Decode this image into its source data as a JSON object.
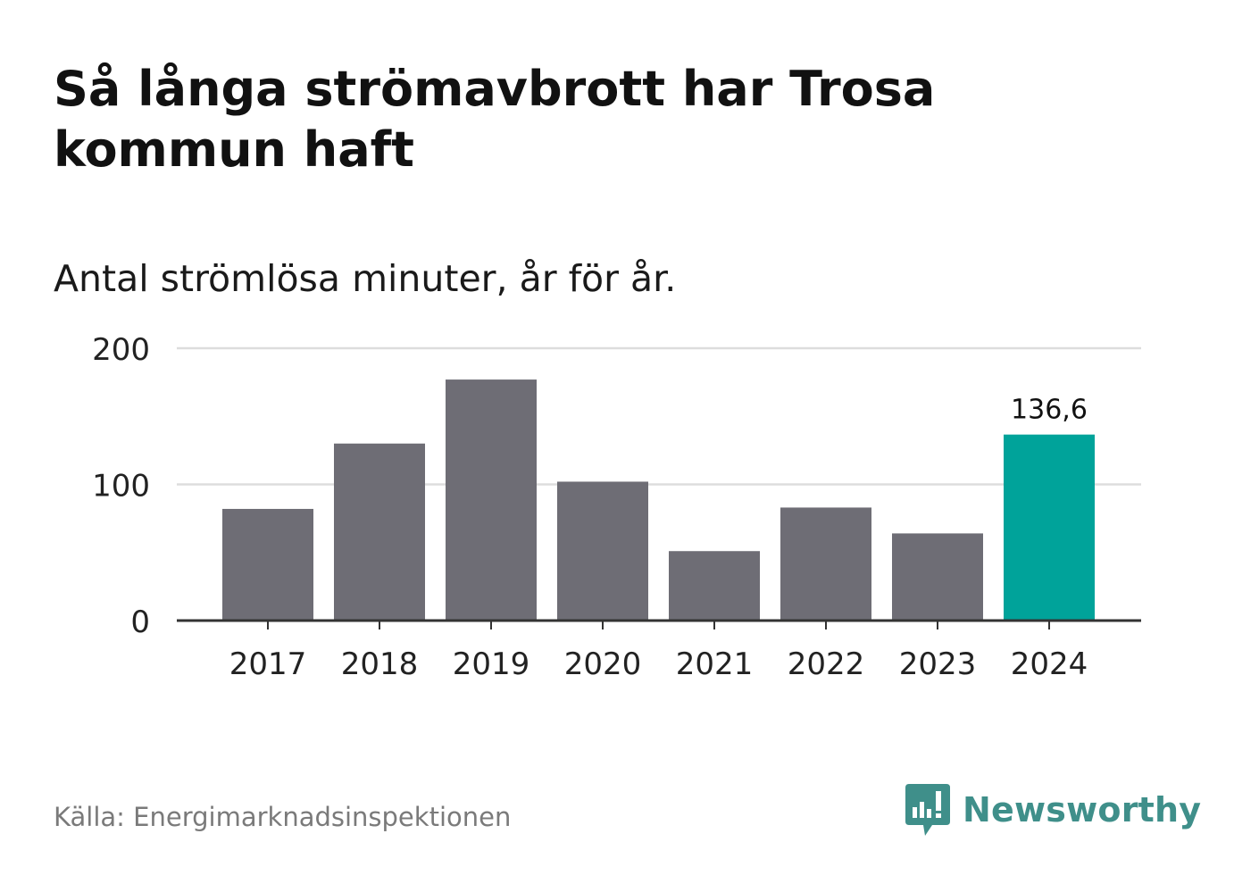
{
  "title": "Så långa strömavbrott har Trosa kommun haft",
  "subtitle": "Antal strömlösa minuter, år för år.",
  "source": "Källa: Energimarknadsinspektionen",
  "brand": {
    "name": "Newsworthy",
    "icon": "newsworthy-logo-icon"
  },
  "colors": {
    "bar": "#6e6d75",
    "highlight": "#00a39a",
    "grid": "#dddddd",
    "axis": "#333333",
    "brand": "#3f8f8a"
  },
  "chart_data": {
    "type": "bar",
    "title": "Så långa strömavbrott har Trosa kommun haft",
    "subtitle": "Antal strömlösa minuter, år för år.",
    "xlabel": "",
    "ylabel": "",
    "categories": [
      "2017",
      "2018",
      "2019",
      "2020",
      "2021",
      "2022",
      "2023",
      "2024"
    ],
    "values": [
      82,
      130,
      177,
      102,
      51,
      83,
      64,
      136.6
    ],
    "ylim": [
      0,
      200
    ],
    "yticks": [
      0,
      100,
      200
    ],
    "ytick_labels": [
      "0",
      "100",
      "200"
    ],
    "grid": true,
    "highlight_index": 7,
    "data_labels": [
      {
        "index": 7,
        "text": "136,6"
      }
    ]
  }
}
